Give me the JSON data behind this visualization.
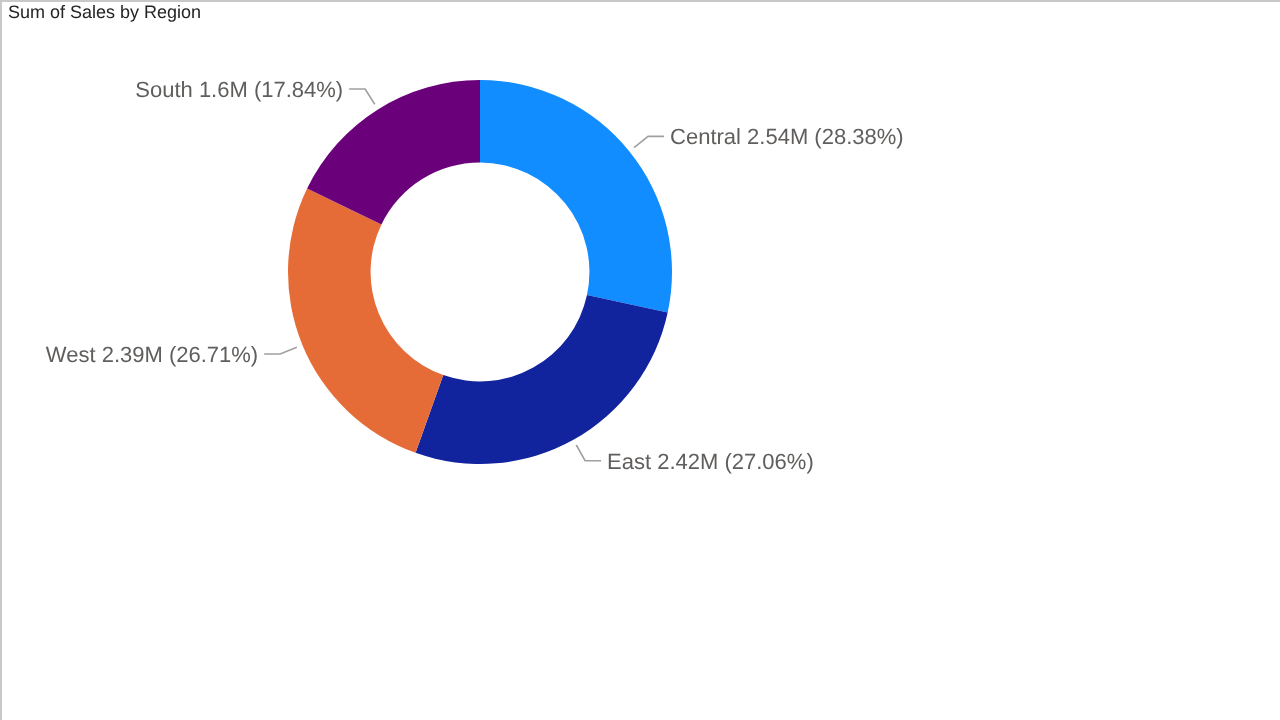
{
  "chart_data": {
    "type": "donut",
    "title": "Sum of Sales by Region",
    "categories": [
      "Central",
      "East",
      "West",
      "South"
    ],
    "values": [
      28.38,
      27.06,
      26.71,
      17.84
    ],
    "value_labels": [
      "2.54M (28.38%)",
      "2.42M (27.06%)",
      "2.39M (26.71%)",
      "1.6M (17.84%)"
    ],
    "colors": [
      "#118dff",
      "#12239e",
      "#e66c37",
      "#6b007b"
    ],
    "legend": false
  }
}
